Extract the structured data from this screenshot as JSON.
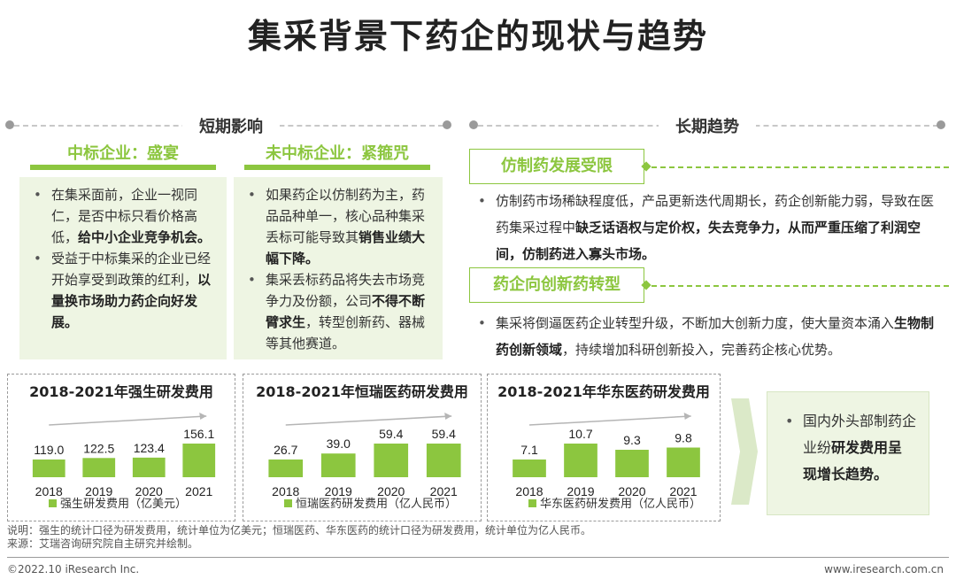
{
  "title": "集采背景下药企的现状与趋势",
  "short_term": {
    "heading": "短期影响",
    "winning": {
      "title": "中标企业：盛宴",
      "bullets": [
        [
          {
            "t": "在集采面前，企业一视同仁，是否中标只看价格高低，"
          },
          {
            "t": "给中小企业竞争机会。",
            "b": true
          }
        ],
        [
          {
            "t": "受益于中标集采的企业已经开始享受到政策的红利，"
          },
          {
            "t": "以量换市场助力药企向好发展。",
            "b": true
          }
        ]
      ]
    },
    "losing": {
      "title": "未中标企业：紧箍咒",
      "bullets": [
        [
          {
            "t": "如果药企以仿制药为主，药品品种单一，核心品种集采丢标可能导致其"
          },
          {
            "t": "销售业绩大幅下降。",
            "b": true
          }
        ],
        [
          {
            "t": "集采丢标药品将失去市场竞争力及份额，公司"
          },
          {
            "t": "不得不断臂求生",
            "b": true
          },
          {
            "t": "，转型创新药、器械等其他赛道。"
          }
        ]
      ]
    }
  },
  "long_term": {
    "heading": "长期趋势",
    "items": [
      {
        "label": "仿制药发展受限",
        "text": [
          {
            "t": "仿制药市场稀缺程度低，产品更新迭代周期长，药企创新能力弱，导致在医药集采过程中"
          },
          {
            "t": "缺乏话语权与定价权，失去竞争力，从而严重压缩了利润空间，仿制药进入寡头市场。",
            "b": true
          }
        ]
      },
      {
        "label": "药企向创新药转型",
        "text": [
          {
            "t": "集采将倒逼医药企业转型升级，不断加大创新力度，使大量资本涌入"
          },
          {
            "t": "生物制药创新领域",
            "b": true
          },
          {
            "t": "，持续增加科研创新投入，完善药企核心优势。"
          }
        ]
      }
    ]
  },
  "summary": [
    {
      "t": "国内外头部制药企业纷"
    },
    {
      "t": "研发费用呈现增长趋势。",
      "b": true
    }
  ],
  "chart_data": [
    {
      "type": "bar",
      "title": "2018-2021年强生研发费用",
      "categories": [
        "2018",
        "2019",
        "2020",
        "2021"
      ],
      "values": [
        119.0,
        122.5,
        123.4,
        156.1
      ],
      "labels": [
        "119.0",
        "122.5",
        "123.4",
        "156.1"
      ],
      "legend": "强生研发费用（亿美元）",
      "color": "#8cc63f"
    },
    {
      "type": "bar",
      "title": "2018-2021年恒瑞医药研发费用",
      "categories": [
        "2018",
        "2019",
        "2020",
        "2021"
      ],
      "values": [
        26.7,
        39.0,
        59.4,
        59.4
      ],
      "labels": [
        "26.7",
        "39.0",
        "59.4",
        "59.4"
      ],
      "legend": "恒瑞医药研发费用（亿人民币）",
      "color": "#8cc63f"
    },
    {
      "type": "bar",
      "title": "2018-2021年华东医药研发费用",
      "categories": [
        "2018",
        "2019",
        "2020",
        "2021"
      ],
      "values": [
        7.1,
        10.7,
        9.3,
        9.8
      ],
      "labels": [
        "7.1",
        "10.7",
        "9.3",
        "9.8"
      ],
      "legend": "华东医药研发费用（亿人民币）",
      "color": "#8cc63f"
    }
  ],
  "notes": {
    "line1": "说明：强生的统计口径为研发费用，统计单位为亿美元；恒瑞医药、华东医药的统计口径为研发费用，统计单位为亿人民币。",
    "line2": "来源：艾瑞咨询研究院自主研究并绘制。"
  },
  "footer": {
    "left": "©2022.10 iResearch Inc.",
    "right": "www.iresearch.com.cn"
  },
  "colors": {
    "accent": "#8cc63f",
    "light_bg": "#eef5e3"
  }
}
